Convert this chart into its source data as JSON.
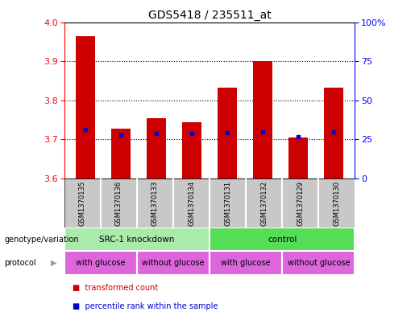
{
  "title": "GDS5418 / 235511_at",
  "samples": [
    "GSM1370135",
    "GSM1370136",
    "GSM1370133",
    "GSM1370134",
    "GSM1370131",
    "GSM1370132",
    "GSM1370129",
    "GSM1370130"
  ],
  "red_values": [
    3.965,
    3.728,
    3.755,
    3.745,
    3.832,
    3.9,
    3.705,
    3.832
  ],
  "blue_values": [
    3.725,
    3.712,
    3.715,
    3.715,
    3.718,
    3.72,
    3.706,
    3.72
  ],
  "ylim": [
    3.6,
    4.0
  ],
  "y2lim": [
    0,
    100
  ],
  "yticks": [
    3.6,
    3.7,
    3.8,
    3.9,
    4.0
  ],
  "y2ticks": [
    0,
    25,
    50,
    75,
    100
  ],
  "y2ticklabels": [
    "0",
    "25",
    "50",
    "75",
    "100%"
  ],
  "bar_color": "#cc0000",
  "dot_color": "#0000cc",
  "bar_bottom": 3.6,
  "bar_width": 0.55,
  "label_genotype": "genotype/variation",
  "label_protocol": "protocol",
  "legend_red": "transformed count",
  "legend_blue": "percentile rank within the sample",
  "sample_bg_color": "#c8c8c8",
  "title_fontsize": 10,
  "tick_fontsize": 8,
  "geno_groups": [
    {
      "label": "SRC-1 knockdown",
      "start": 0,
      "end": 4,
      "color": "#aaeaaa"
    },
    {
      "label": "control",
      "start": 4,
      "end": 8,
      "color": "#55dd55"
    }
  ],
  "proto_groups": [
    {
      "label": "with glucose",
      "start": 0,
      "end": 2,
      "color": "#dd66dd"
    },
    {
      "label": "without glucose",
      "start": 2,
      "end": 4,
      "color": "#dd66dd"
    },
    {
      "label": "with glucose",
      "start": 4,
      "end": 6,
      "color": "#dd66dd"
    },
    {
      "label": "without glucose",
      "start": 6,
      "end": 8,
      "color": "#dd66dd"
    }
  ]
}
